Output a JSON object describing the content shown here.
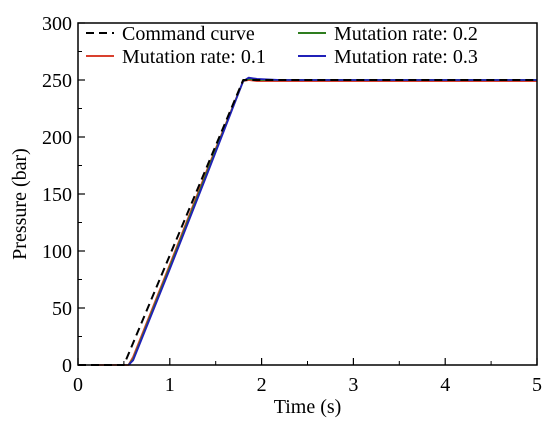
{
  "chart_data": {
    "type": "line",
    "xlabel": "Time (s)",
    "ylabel": "Pressure (bar)",
    "xlim": [
      0,
      5
    ],
    "ylim": [
      0,
      300
    ],
    "x_ticks": [
      "0",
      "1",
      "2",
      "3",
      "4",
      "5"
    ],
    "y_ticks": [
      "0",
      "50",
      "100",
      "150",
      "200",
      "250",
      "300"
    ],
    "grid": false,
    "legend_position": "top",
    "series": [
      {
        "name": "Command curve",
        "color": "#000000",
        "dashed": true,
        "x": [
          0,
          0.5,
          1.8,
          5
        ],
        "y": [
          0,
          0,
          250,
          250
        ]
      },
      {
        "name": "Mutation rate: 0.1",
        "color": "#d9402e",
        "dashed": false,
        "x": [
          0.15,
          0.3,
          0.55,
          0.6,
          1.0,
          1.4,
          1.8,
          1.86,
          1.95,
          2.2,
          5
        ],
        "y": [
          0,
          0,
          0,
          7,
          88,
          170,
          249,
          250,
          249,
          249,
          249
        ]
      },
      {
        "name": "Mutation rate: 0.2",
        "color": "#2e7d1f",
        "dashed": false,
        "x": [
          0.55,
          0.6,
          1.0,
          1.4,
          1.8,
          1.86,
          1.95,
          2.2,
          5
        ],
        "y": [
          0,
          5,
          86,
          168,
          249,
          251,
          250,
          250,
          250
        ]
      },
      {
        "name": "Mutation rate: 0.3",
        "color": "#2020b8",
        "dashed": false,
        "x": [
          0.55,
          0.6,
          1.0,
          1.4,
          1.8,
          1.86,
          1.95,
          2.2,
          5
        ],
        "y": [
          0,
          4,
          84,
          166,
          249,
          252,
          251,
          250,
          250
        ]
      }
    ]
  }
}
